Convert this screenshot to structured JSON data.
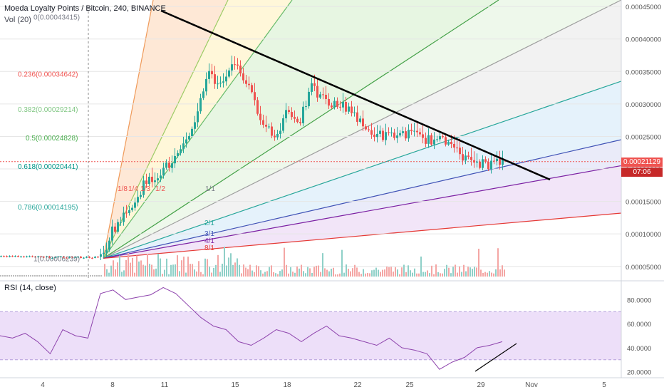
{
  "header": {
    "title": "Moeda Loyalty Points / Bitcoin, 240, BINANCE",
    "volume": "Vol (20)",
    "rsi": "RSI (14, close)"
  },
  "price_tag": {
    "price": "0.00021129",
    "countdown": "07:06"
  },
  "colors": {
    "up": "#26a69a",
    "down": "#ef5350",
    "trendline": "#000000",
    "rsi_line": "#8e44ad",
    "rsi_band": "#e9d7f7"
  },
  "chart_data": [
    {
      "type": "line",
      "name": "price",
      "x_labels": [
        "4",
        "8",
        "11",
        "15",
        "18",
        "22",
        "25",
        "29",
        "Nov",
        "5"
      ],
      "y_ticks": [
        "0.00005000",
        "0.00010000",
        "0.00015000",
        "0.00020000",
        "0.00025000",
        "0.00030000",
        "0.00035000",
        "0.00040000",
        "0.00045000"
      ],
      "ylim": [
        3e-05,
        0.00046
      ],
      "x": [
        "4",
        "8",
        "11",
        "15",
        "18",
        "22",
        "25",
        "29"
      ],
      "values": [
        6.5e-05,
        9e-05,
        0.00016,
        0.00036,
        0.00028,
        0.0003,
        0.00025,
        0.00021
      ],
      "fib_levels": [
        {
          "label": "0.236(0.00034642)",
          "value": 0.00034642,
          "color": "#ef5350"
        },
        {
          "label": "0.382(0.00029214)",
          "value": 0.00029214,
          "color": "#81c784"
        },
        {
          "label": "0.5(0.00024828)",
          "value": 0.00024828,
          "color": "#4caf50"
        },
        {
          "label": "0.618(0.00020441)",
          "value": 0.00020441,
          "color": "#009688"
        },
        {
          "label": "0.786(0.00014195)",
          "value": 0.00014195,
          "color": "#26a69a"
        },
        {
          "label": "1(0.00006239)",
          "value": 6.239e-05,
          "color": "#787b86"
        },
        {
          "label": "0(0.00043415)",
          "value": 0.00043415,
          "color": "#787b86"
        }
      ],
      "fan_labels": [
        "1/8",
        "1/4",
        "1/3",
        "1/2",
        "1/1",
        "2/1",
        "3/1",
        "4/1",
        "8/1"
      ]
    },
    {
      "type": "line",
      "name": "RSI",
      "y_ticks": [
        "20.0000",
        "40.0000",
        "60.0000",
        "80.0000"
      ],
      "ylim": [
        18,
        95
      ],
      "band": [
        30,
        70
      ],
      "values": [
        50,
        48,
        52,
        45,
        35,
        55,
        50,
        48,
        85,
        88,
        80,
        82,
        84,
        90,
        85,
        75,
        65,
        58,
        55,
        45,
        42,
        48,
        55,
        52,
        45,
        52,
        58,
        50,
        48,
        45,
        42,
        48,
        40,
        38,
        35,
        22,
        28,
        32,
        40,
        42,
        45
      ]
    }
  ]
}
